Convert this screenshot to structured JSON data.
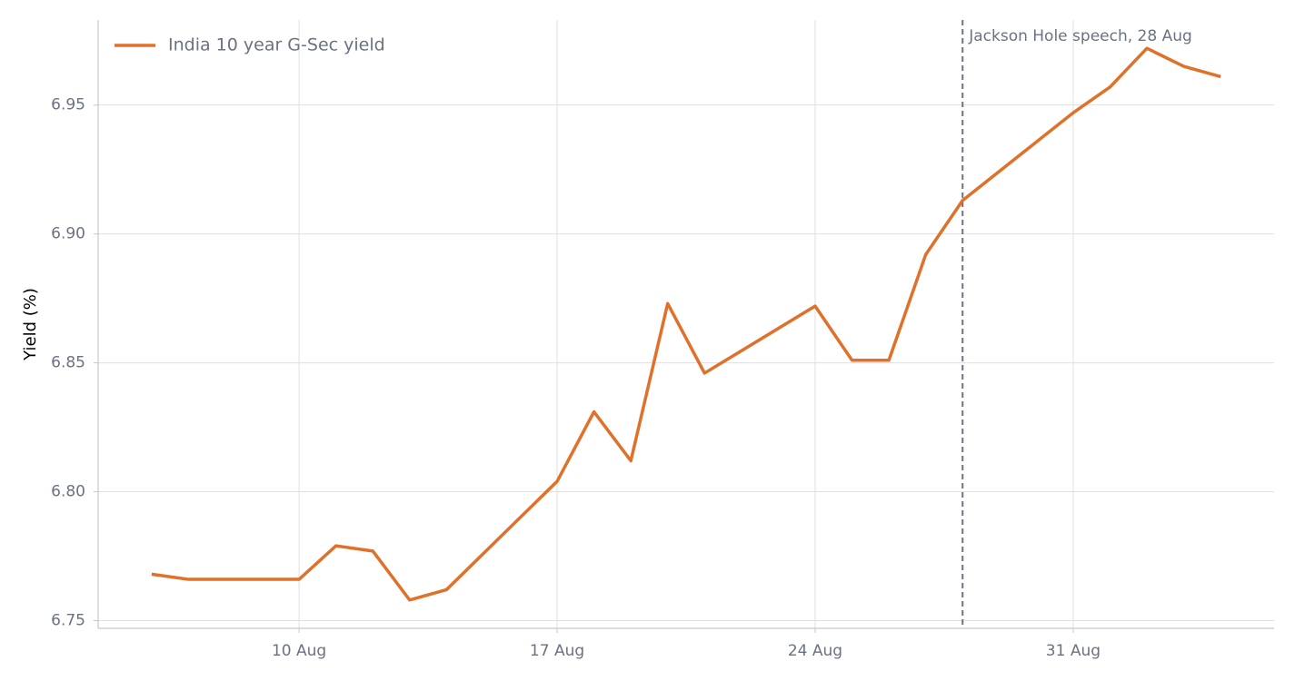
{
  "chart_data": {
    "type": "line",
    "x": [
      "6 Aug",
      "7 Aug",
      "10 Aug",
      "11 Aug",
      "12 Aug",
      "13 Aug",
      "14 Aug",
      "17 Aug",
      "18 Aug",
      "19 Aug",
      "20 Aug",
      "21 Aug",
      "24 Aug",
      "25 Aug",
      "26 Aug",
      "27 Aug",
      "28 Aug",
      "31 Aug",
      "1 Sep",
      "2 Sep",
      "3 Sep",
      "4 Sep"
    ],
    "series": [
      {
        "name": "India 10 year G-Sec yield",
        "color": "#e0712a",
        "values": [
          6.768,
          6.766,
          6.766,
          6.779,
          6.777,
          6.758,
          6.762,
          6.804,
          6.831,
          6.812,
          6.873,
          6.846,
          6.872,
          6.851,
          6.851,
          6.892,
          6.913,
          6.947,
          6.957,
          6.972,
          6.965,
          6.961
        ]
      }
    ],
    "y_label": "Yield (%)",
    "ylim": [
      6.747,
      6.983
    ],
    "yticks": [
      6.75,
      {
        "value": 6.8,
        "label": "6.80"
      },
      6.85,
      {
        "value": 6.9,
        "label": "6.90"
      },
      6.95
    ],
    "xticks": [
      "10 Aug",
      "17 Aug",
      "24 Aug",
      "31 Aug"
    ],
    "grid": true,
    "legend": "upper left",
    "annotations": [
      {
        "x": "28 Aug",
        "text": "Jackson Hole speech, 28 Aug",
        "color": "#6b7280"
      }
    ]
  }
}
